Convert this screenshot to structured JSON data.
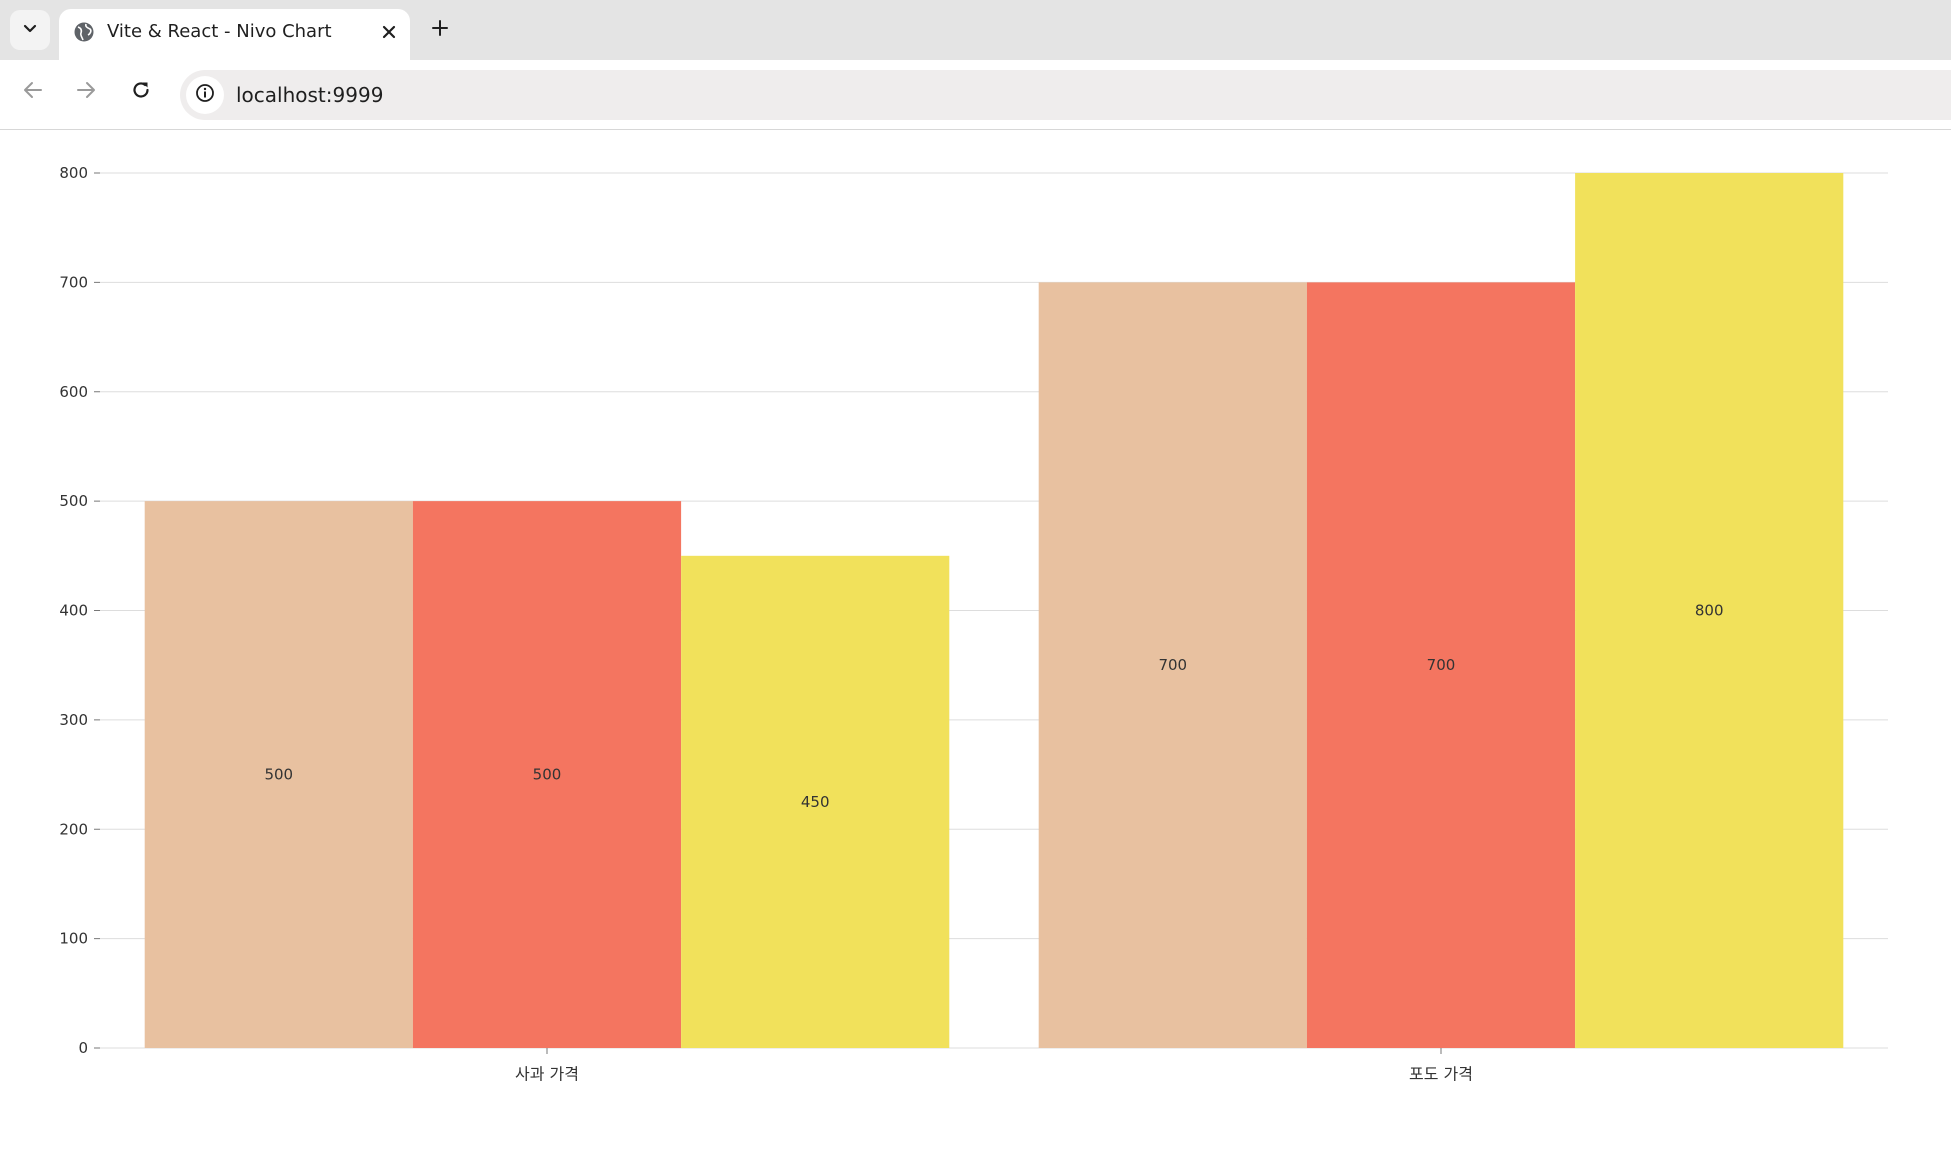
{
  "browser": {
    "tab_title": "Vite & React - Nivo Chart",
    "url": "localhost:9999",
    "icons": [
      "tab-list-chevron-icon",
      "globe-icon",
      "close-icon",
      "plus-icon",
      "back-arrow-icon",
      "forward-arrow-icon",
      "reload-icon",
      "info-icon"
    ]
  },
  "chart_data": {
    "type": "bar",
    "mode": "grouped",
    "categories": [
      "사과 가격",
      "포도 가격"
    ],
    "series": [
      {
        "color": "#e8c1a0",
        "values": [
          500,
          700
        ]
      },
      {
        "color": "#f47560",
        "values": [
          500,
          700
        ]
      },
      {
        "color": "#f1e15b",
        "values": [
          450,
          800
        ]
      }
    ],
    "ylim": [
      0,
      800
    ],
    "yticks": [
      0,
      100,
      200,
      300,
      400,
      500,
      600,
      700,
      800
    ],
    "grid": true,
    "legend": "none",
    "value_labels": true
  }
}
